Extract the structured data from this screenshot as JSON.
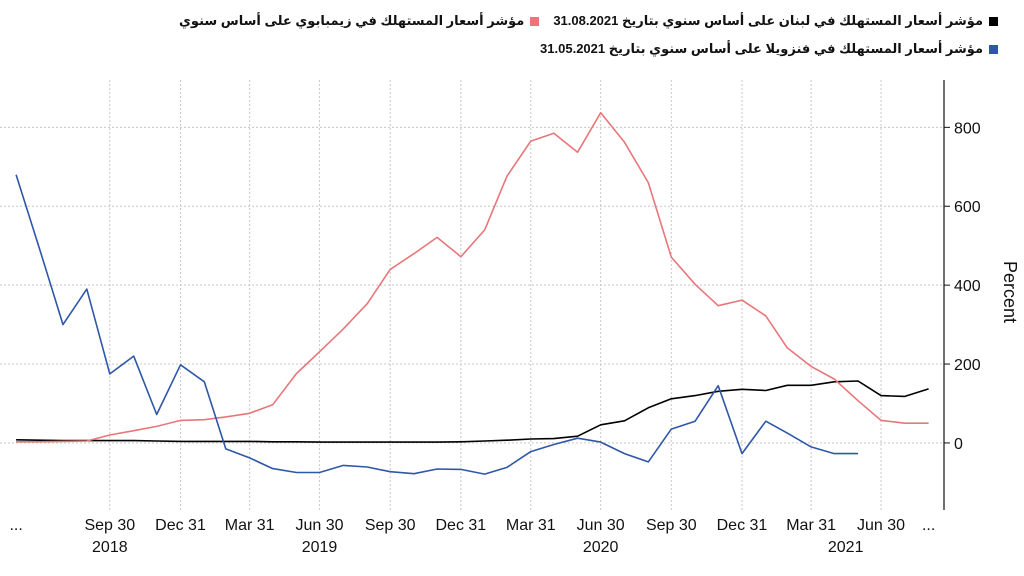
{
  "legend": {
    "lebanon": "مؤشر أسعار المستهلك في لبنان على أساس سنوي بتاريخ 31.08.2021",
    "zimbabwe": "مؤشر أسعار المستهلك في زيمبابوي على أساس سنوي",
    "venezuela": "مؤشر أسعار المستهلك في فنزويلا على أساس سنوي بتاريخ 31.05.2021"
  },
  "chart_data": {
    "type": "line",
    "ylabel": "Percent",
    "ylim": [
      -170,
      920
    ],
    "y_ticks": [
      0,
      200,
      400,
      600,
      800
    ],
    "y_tick_labels": [
      "0",
      "200",
      "400",
      "600",
      "800"
    ],
    "grid": true,
    "x_ticks": [
      {
        "label": "...",
        "x": "2018-05-31"
      },
      {
        "label": "Sep 30",
        "x": "2018-09-30"
      },
      {
        "label": "Dec 31",
        "x": "2018-12-31"
      },
      {
        "label": "Mar 31",
        "x": "2019-03-31"
      },
      {
        "label": "Jun 30",
        "x": "2019-06-30"
      },
      {
        "label": "Sep 30",
        "x": "2019-09-30"
      },
      {
        "label": "Dec 31",
        "x": "2019-12-31"
      },
      {
        "label": "Mar 31",
        "x": "2020-03-31"
      },
      {
        "label": "Jun 30",
        "x": "2020-06-30"
      },
      {
        "label": "Sep 30",
        "x": "2020-09-30"
      },
      {
        "label": "Dec 31",
        "x": "2020-12-31"
      },
      {
        "label": "Mar 31",
        "x": "2021-03-31"
      },
      {
        "label": "Jun 30",
        "x": "2021-06-30"
      },
      {
        "label": "...",
        "x": "2021-08-31"
      }
    ],
    "year_labels": [
      {
        "label": "2018",
        "x": "2018-09-30"
      },
      {
        "label": "2019",
        "x": "2019-06-30"
      },
      {
        "label": "2020",
        "x": "2020-06-30"
      },
      {
        "label": "2021",
        "x": "2021-05-15"
      }
    ],
    "x_range": [
      "2018-05-10",
      "2021-09-20"
    ],
    "colors": {
      "lebanon": "#000000",
      "zimbabwe": "#e8767a",
      "venezuela": "#2f57a8"
    },
    "series": [
      {
        "key": "lebanon",
        "x": [
          "2018-05-31",
          "2018-06-30",
          "2018-07-31",
          "2018-08-31",
          "2018-09-30",
          "2018-10-31",
          "2018-11-30",
          "2018-12-31",
          "2019-01-31",
          "2019-02-28",
          "2019-03-31",
          "2019-04-30",
          "2019-05-31",
          "2019-06-30",
          "2019-07-31",
          "2019-08-31",
          "2019-09-30",
          "2019-10-31",
          "2019-11-30",
          "2019-12-31",
          "2020-01-31",
          "2020-02-29",
          "2020-03-31",
          "2020-04-30",
          "2020-05-31",
          "2020-06-30",
          "2020-07-31",
          "2020-08-31",
          "2020-09-30",
          "2020-10-31",
          "2020-11-30",
          "2020-12-31",
          "2021-01-31",
          "2021-02-28",
          "2021-03-31",
          "2021-04-30",
          "2021-05-31",
          "2021-06-30",
          "2021-07-31",
          "2021-08-31"
        ],
        "values": [
          8,
          7,
          6,
          6,
          6,
          6,
          5,
          4,
          4,
          4,
          4,
          3,
          3,
          2,
          2,
          2,
          2,
          2,
          2,
          3,
          5,
          7,
          10,
          11,
          17,
          46,
          56,
          89,
          112,
          120,
          131,
          136,
          133,
          146,
          146,
          155,
          157,
          120,
          118,
          137
        ]
      },
      {
        "key": "zimbabwe",
        "x": [
          "2018-05-31",
          "2018-06-30",
          "2018-07-31",
          "2018-08-31",
          "2018-09-30",
          "2018-10-31",
          "2018-11-30",
          "2018-12-31",
          "2019-01-31",
          "2019-02-28",
          "2019-03-31",
          "2019-04-30",
          "2019-05-31",
          "2019-06-30",
          "2019-07-31",
          "2019-08-31",
          "2019-09-30",
          "2019-10-31",
          "2019-11-30",
          "2019-12-31",
          "2020-01-31",
          "2020-02-29",
          "2020-03-31",
          "2020-04-30",
          "2020-05-31",
          "2020-06-30",
          "2020-07-31",
          "2020-08-31",
          "2020-09-30",
          "2020-10-31",
          "2020-11-30",
          "2020-12-31",
          "2021-01-31",
          "2021-02-28",
          "2021-03-31",
          "2021-04-30",
          "2021-05-31",
          "2021-06-30",
          "2021-07-31",
          "2021-08-31"
        ],
        "values": [
          3,
          3,
          4,
          5,
          20,
          31,
          42,
          57,
          59,
          66,
          75,
          97,
          176,
          231,
          289,
          353,
          440,
          480,
          521,
          472,
          540,
          676,
          765,
          785,
          737,
          837,
          762,
          660,
          471,
          402,
          348,
          362,
          322,
          241,
          194,
          162,
          107,
          57,
          50,
          50
        ]
      },
      {
        "key": "venezuela",
        "x": [
          "2018-05-31",
          "2018-06-30",
          "2018-07-31",
          "2018-08-31",
          "2018-09-30",
          "2018-10-31",
          "2018-11-30",
          "2018-12-31",
          "2019-01-31",
          "2019-02-28",
          "2019-03-31",
          "2019-04-30",
          "2019-05-31",
          "2019-06-30",
          "2019-07-31",
          "2019-08-31",
          "2019-09-30",
          "2019-10-31",
          "2019-11-30",
          "2019-12-31",
          "2020-01-31",
          "2020-02-29",
          "2020-03-31",
          "2020-04-30",
          "2020-05-31",
          "2020-06-30",
          "2020-07-31",
          "2020-08-31",
          "2020-09-30",
          "2020-10-31",
          "2020-11-30",
          "2020-12-31",
          "2021-01-31",
          "2021-02-28",
          "2021-03-31",
          "2021-04-30",
          "2021-05-31"
        ],
        "values": [
          680,
          495,
          300,
          390,
          175,
          220,
          72,
          198,
          155,
          -15,
          -38,
          -65,
          -75,
          -75,
          -57,
          -61,
          -73,
          -78,
          -66,
          -67,
          -79,
          -62,
          -22,
          -4,
          12,
          2,
          -27,
          -48,
          35,
          55,
          145,
          -27,
          55,
          25,
          -10,
          -27,
          -27
        ]
      }
    ]
  }
}
